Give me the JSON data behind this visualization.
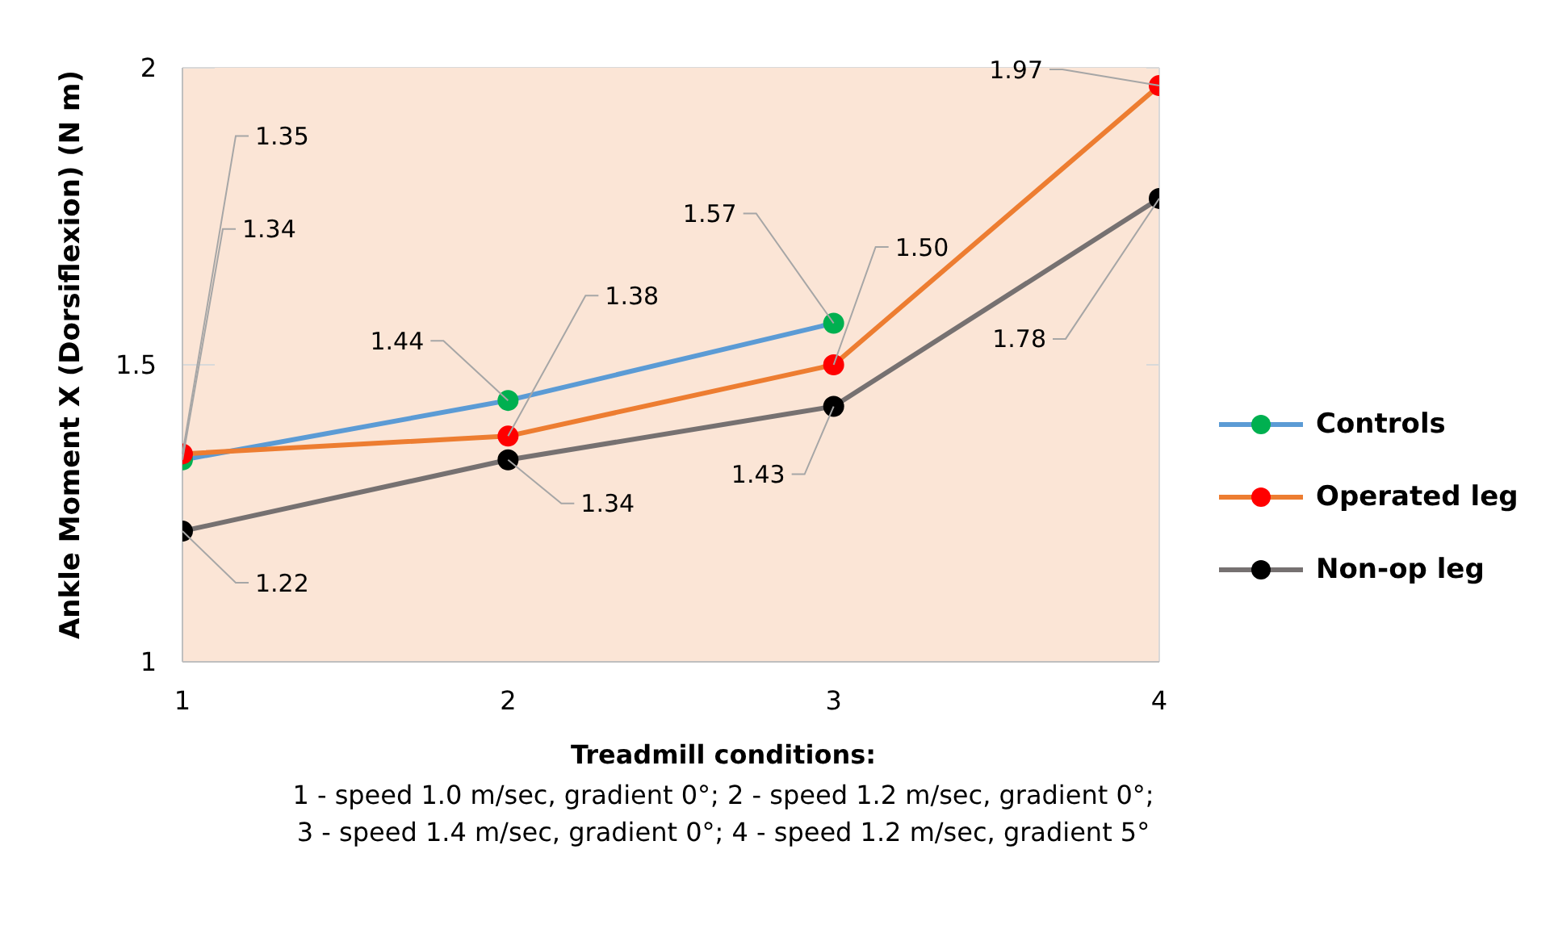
{
  "chart_data": {
    "type": "line",
    "ylabel": "Ankle Moment X (Dorsiflexion) (N m)",
    "xlabel": "Treadmill conditions:",
    "annotations": [
      "1 - speed 1.0 m/sec, gradient 0°; 2 - speed 1.2 m/sec, gradient 0°;",
      "3 - speed 1.4 m/sec, gradient 0°; 4 - speed 1.2 m/sec, gradient 5°"
    ],
    "x": [
      1,
      2,
      3,
      4
    ],
    "xlim": [
      1,
      4
    ],
    "xticks": [
      1,
      2,
      3,
      4
    ],
    "ylim": [
      1,
      2
    ],
    "yticks": [
      1,
      1.5,
      2
    ],
    "grid": true,
    "legend": "right",
    "marker": "circle",
    "line_style": "solid",
    "series": [
      {
        "name": "Controls",
        "color": "#5b9bd5",
        "colors": [
          "#00b050",
          "#00b050",
          "#00b050",
          null
        ],
        "values": [
          1.34,
          1.44,
          1.57,
          null
        ],
        "value_labels": [
          "1.34",
          "1.44",
          "1.57",
          null
        ]
      },
      {
        "name": "Operated leg",
        "color": "#ed7d31",
        "colors": [
          "#ff0000",
          "#ff0000",
          "#ff0000",
          "#ff0000"
        ],
        "values": [
          1.35,
          1.38,
          1.5,
          1.97
        ],
        "value_labels": [
          "1.35",
          "1.38",
          "1.50",
          "1.97"
        ]
      },
      {
        "name": "Non-op leg",
        "color": "#767171",
        "colors": [
          "#000000",
          "#000000",
          "#000000",
          "#000000"
        ],
        "values": [
          1.22,
          1.34,
          1.43,
          1.78
        ],
        "value_labels": [
          "1.22",
          "1.34",
          "1.43",
          "1.78"
        ]
      }
    ]
  }
}
